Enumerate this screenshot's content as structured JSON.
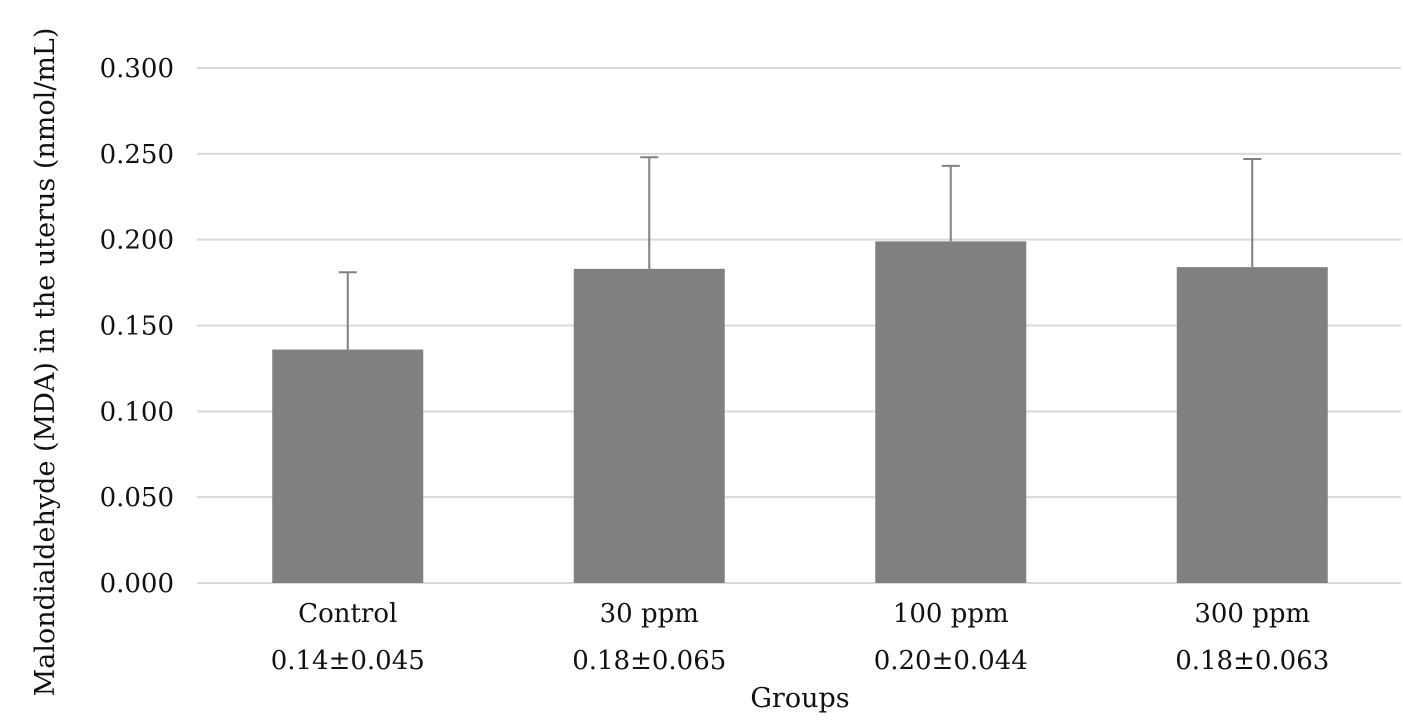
{
  "chart_data": {
    "type": "bar",
    "title": "",
    "xlabel": "Groups",
    "ylabel": "Malondialdehyde (MDA) in the uterus (nmol/mL)",
    "ylim": [
      0,
      0.3
    ],
    "yticks": [
      "0.000",
      "0.050",
      "0.100",
      "0.150",
      "0.200",
      "0.250",
      "0.300"
    ],
    "grid": true,
    "legend": "none",
    "bar_color": "#808080",
    "error_bar_color": "#808080",
    "gridline_color": "#d9d9d9",
    "categories": [
      "Control",
      "30 ppm",
      "100 ppm",
      "300 ppm"
    ],
    "category_sublabels": [
      "0.14±0.045",
      "0.18±0.065",
      "0.20±0.044",
      "0.18±0.063"
    ],
    "values": [
      0.136,
      0.183,
      0.199,
      0.184
    ],
    "errors": [
      0.045,
      0.065,
      0.044,
      0.063
    ]
  }
}
